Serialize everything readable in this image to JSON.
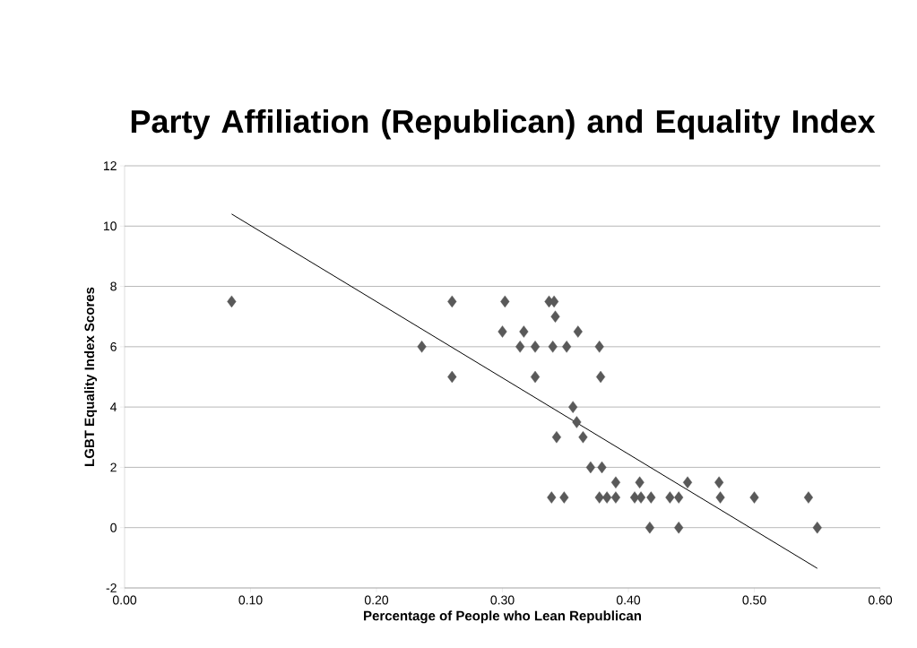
{
  "chart_data": {
    "type": "scatter",
    "title": "Party Affiliation (Republican) and Equality Index",
    "xlabel": "Percentage of People who Lean Republican",
    "ylabel": "LGBT Equality Index Scores",
    "xlim": [
      0,
      0.6
    ],
    "ylim": [
      -2,
      12
    ],
    "xticks": [
      {
        "value": 0,
        "label": "0.00"
      },
      {
        "value": 0.1,
        "label": "0.10"
      },
      {
        "value": 0.2,
        "label": "0.20"
      },
      {
        "value": 0.3,
        "label": "0.30"
      },
      {
        "value": 0.4,
        "label": "0.40"
      },
      {
        "value": 0.5,
        "label": "0.50"
      },
      {
        "value": 0.6,
        "label": "0.60"
      }
    ],
    "yticks": [
      -2,
      0,
      2,
      4,
      6,
      8,
      10,
      12
    ],
    "grid": "y",
    "series": [
      {
        "marker": "diamond",
        "color": "#595959",
        "x": [
          0.085,
          0.236,
          0.26,
          0.26,
          0.302,
          0.337,
          0.341,
          0.342,
          0.3,
          0.317,
          0.36,
          0.314,
          0.326,
          0.34,
          0.351,
          0.377,
          0.326,
          0.378,
          0.356,
          0.359,
          0.343,
          0.364,
          0.37,
          0.379,
          0.39,
          0.409,
          0.447,
          0.472,
          0.339,
          0.349,
          0.377,
          0.383,
          0.39,
          0.405,
          0.41,
          0.418,
          0.433,
          0.44,
          0.473,
          0.5,
          0.543,
          0.417,
          0.44,
          0.55
        ],
        "values": [
          7.5,
          6,
          7.5,
          5,
          7.5,
          7.5,
          7.5,
          7,
          6.5,
          6.5,
          6.5,
          6,
          6,
          6,
          6,
          6,
          5,
          5,
          4,
          3.5,
          3,
          3,
          2,
          2,
          1.5,
          1.5,
          1.5,
          1.5,
          1,
          1,
          1,
          1,
          1,
          1,
          1,
          1,
          1,
          1,
          1,
          1,
          1,
          0,
          0,
          0
        ]
      },
      {
        "type": "line",
        "marker": "none",
        "color": "#000000",
        "x": [
          0.085,
          0.55
        ],
        "values": [
          10.4,
          -1.35
        ]
      }
    ]
  }
}
